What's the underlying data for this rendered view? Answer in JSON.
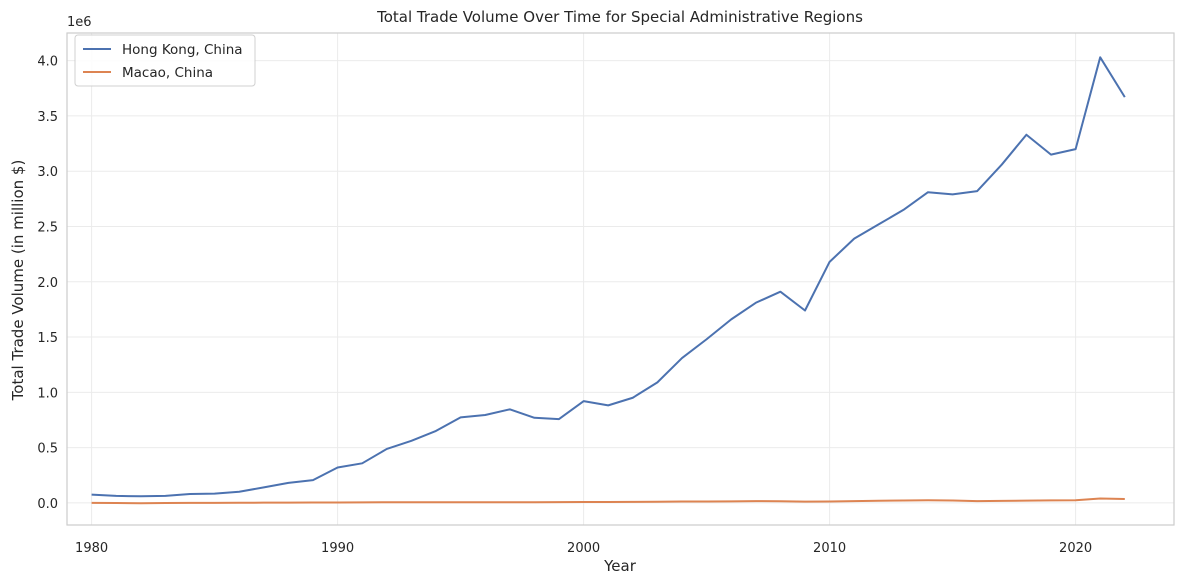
{
  "chart_data": {
    "type": "line",
    "title": "Total Trade Volume Over Time for Special Administrative Regions",
    "xlabel": "Year",
    "ylabel": "Total Trade Volume (in million $)",
    "y_offset_label": "1e6",
    "xlim": [
      1979,
      2024
    ],
    "ylim": [
      -200000,
      4250000
    ],
    "x_ticks": [
      1980,
      1990,
      2000,
      2010,
      2020
    ],
    "y_ticks": [
      0,
      500000,
      1000000,
      1500000,
      2000000,
      2500000,
      3000000,
      3500000,
      4000000
    ],
    "y_tick_labels": [
      "0.0",
      "0.5",
      "1.0",
      "1.5",
      "2.0",
      "2.5",
      "3.0",
      "3.5",
      "4.0"
    ],
    "grid": true,
    "legend_position": "top-left",
    "x": [
      1980,
      1981,
      1982,
      1983,
      1984,
      1985,
      1986,
      1987,
      1988,
      1989,
      1990,
      1991,
      1992,
      1993,
      1994,
      1995,
      1996,
      1997,
      1998,
      1999,
      2000,
      2001,
      2002,
      2003,
      2004,
      2005,
      2006,
      2007,
      2008,
      2009,
      2010,
      2011,
      2012,
      2013,
      2014,
      2015,
      2016,
      2017,
      2018,
      2019,
      2020,
      2021,
      2022
    ],
    "series": [
      {
        "name": "Hong Kong, China",
        "color": "#4c72b0",
        "values": [
          75000,
          63000,
          60000,
          63000,
          80000,
          84000,
          101000,
          140000,
          181000,
          206000,
          320000,
          358000,
          488000,
          561000,
          651000,
          773000,
          795000,
          846000,
          770000,
          758000,
          920000,
          882000,
          951000,
          1090000,
          1310000,
          1480000,
          1660000,
          1810000,
          1910000,
          1740000,
          2180000,
          2390000,
          2520000,
          2650000,
          2810000,
          2790000,
          2820000,
          3060000,
          3330000,
          3150000,
          3200000,
          4030000,
          3670000
        ]
      },
      {
        "name": "Macao, China",
        "color": "#dd8452",
        "values": [
          0,
          -1000,
          -3000,
          -1000,
          0,
          0,
          1000,
          2000,
          2000,
          3000,
          4000,
          5000,
          6000,
          6000,
          6000,
          6000,
          6000,
          6000,
          6000,
          7000,
          8000,
          8000,
          9000,
          10000,
          12000,
          13000,
          14000,
          16000,
          15000,
          11000,
          13000,
          16000,
          19000,
          22000,
          24000,
          22000,
          16000,
          18000,
          21000,
          23000,
          24000,
          40000,
          35000
        ]
      }
    ]
  }
}
